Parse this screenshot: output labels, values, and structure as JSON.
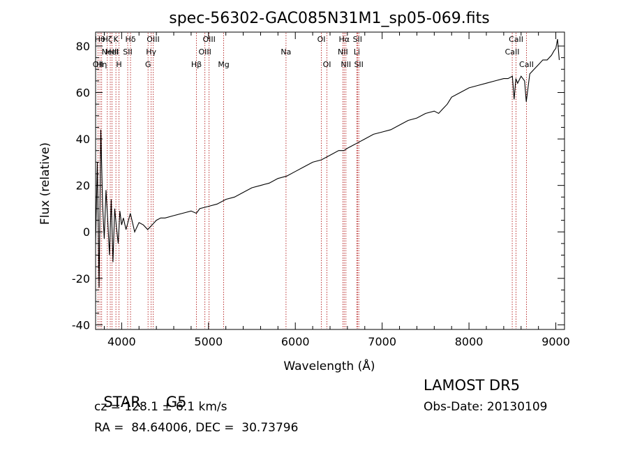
{
  "chart_data": {
    "type": "line",
    "title": "spec-56302-GAC085N31M1_sp05-069.fits",
    "xlabel": "Wavelength (Å)",
    "ylabel": "Flux (relative)",
    "xlim": [
      3700,
      9100
    ],
    "ylim": [
      -42,
      86
    ],
    "xticks": [
      4000,
      5000,
      6000,
      7000,
      8000,
      9000
    ],
    "yticks": [
      -40,
      -20,
      0,
      20,
      40,
      60,
      80
    ],
    "grid": false,
    "line_color": "#000000",
    "marker_color": "#aa0000",
    "series": [
      {
        "x": [
          3700,
          3720,
          3740,
          3760,
          3780,
          3800,
          3820,
          3840,
          3860,
          3880,
          3900,
          3920,
          3940,
          3960,
          3980,
          4000,
          4020,
          4050,
          4100,
          4150,
          4200,
          4250,
          4300,
          4350,
          4400,
          4450,
          4500,
          4600,
          4700,
          4800,
          4860,
          4900,
          5000,
          5100,
          5200,
          5300,
          5400,
          5500,
          5600,
          5700,
          5800,
          5900,
          6000,
          6100,
          6200,
          6300,
          6400,
          6500,
          6560,
          6600,
          6700,
          6800,
          6900,
          7000,
          7100,
          7200,
          7300,
          7400,
          7500,
          7600,
          7650,
          7700,
          7750,
          7800,
          7900,
          8000,
          8100,
          8200,
          8300,
          8400,
          8450,
          8500,
          8520,
          8540,
          8560,
          8600,
          8640,
          8660,
          8700,
          8750,
          8800,
          8850,
          8900,
          8950,
          8980,
          9000,
          9020,
          9040
        ],
        "y": [
          -5,
          30,
          -24,
          44,
          12,
          -3,
          18,
          5,
          -10,
          14,
          -13,
          10,
          2,
          -5,
          9,
          3,
          6,
          1,
          8,
          0,
          4,
          3,
          1,
          3,
          5,
          6,
          6,
          7,
          8,
          9,
          8,
          10,
          11,
          12,
          14,
          15,
          17,
          19,
          20,
          21,
          23,
          24,
          26,
          28,
          30,
          31,
          33,
          35,
          35,
          36,
          38,
          40,
          42,
          43,
          44,
          46,
          48,
          49,
          51,
          52,
          51,
          53,
          55,
          58,
          60,
          62,
          63,
          64,
          65,
          66,
          66,
          67,
          57,
          66,
          64,
          67,
          65,
          56,
          68,
          70,
          72,
          74,
          74,
          76,
          78,
          79,
          83,
          74
        ]
      }
    ],
    "lines": [
      {
        "wavelength": 3727,
        "label": "OII",
        "row": 2
      },
      {
        "wavelength": 3750,
        "label": "Hθ",
        "row": 0
      },
      {
        "wavelength": 3770,
        "label": "Hη",
        "row": 2
      },
      {
        "wavelength": 3835,
        "label": "Hζ",
        "row": 0
      },
      {
        "wavelength": 3869,
        "label": "NeIII",
        "row": 1
      },
      {
        "wavelength": 3889,
        "label": "HeI",
        "row": 1
      },
      {
        "wavelength": 3934,
        "label": "K",
        "row": 0
      },
      {
        "wavelength": 3969,
        "label": "H",
        "row": 2
      },
      {
        "wavelength": 4070,
        "label": "SII",
        "row": 1
      },
      {
        "wavelength": 4102,
        "label": "Hδ",
        "row": 0
      },
      {
        "wavelength": 4304,
        "label": "G",
        "row": 2
      },
      {
        "wavelength": 4340,
        "label": "Hγ",
        "row": 1
      },
      {
        "wavelength": 4363,
        "label": "OIII",
        "row": 0
      },
      {
        "wavelength": 4861,
        "label": "Hβ",
        "row": 2
      },
      {
        "wavelength": 4959,
        "label": "OIII",
        "row": 1
      },
      {
        "wavelength": 5007,
        "label": "OIII",
        "row": 0
      },
      {
        "wavelength": 5175,
        "label": "Mg",
        "row": 2
      },
      {
        "wavelength": 5893,
        "label": "Na",
        "row": 1
      },
      {
        "wavelength": 6300,
        "label": "OI",
        "row": 0
      },
      {
        "wavelength": 6364,
        "label": "OI",
        "row": 2
      },
      {
        "wavelength": 6548,
        "label": "NII",
        "row": 1
      },
      {
        "wavelength": 6563,
        "label": "Hα",
        "row": 0
      },
      {
        "wavelength": 6583,
        "label": "NII",
        "row": 2
      },
      {
        "wavelength": 6708,
        "label": "Li",
        "row": 1
      },
      {
        "wavelength": 6716,
        "label": "SII",
        "row": 0
      },
      {
        "wavelength": 6731,
        "label": "SII",
        "row": 2
      },
      {
        "wavelength": 8498,
        "label": "CaII",
        "row": 1
      },
      {
        "wavelength": 8542,
        "label": "CaII",
        "row": 0
      },
      {
        "wavelength": 8662,
        "label": "CaII",
        "row": 2
      }
    ]
  },
  "info": {
    "class": "STAR",
    "subclass": "G5",
    "survey": "LAMOST DR5",
    "velocity": "cz = 128.1 ± 6.1 km/s",
    "obs_date": "Obs-Date: 20130109",
    "coords": "RA =  84.64006, DEC =  30.73796"
  }
}
